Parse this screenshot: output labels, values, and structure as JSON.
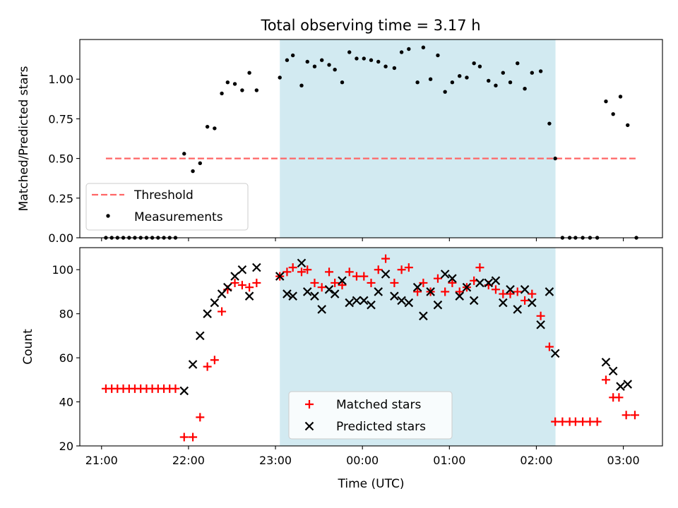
{
  "figure": {
    "title": "Total observing time = 3.17 h"
  },
  "colors": {
    "shade": "#add8e6",
    "threshold": "#ff6666",
    "measurement": "#000000",
    "matched": "#ff0000",
    "predicted": "#000000"
  },
  "chart_data": [
    {
      "type": "scatter",
      "title": "Total observing time = 3.17 h",
      "xlabel": "",
      "ylabel": "Matched/Predicted stars",
      "x_unit": "hours (Time UTC)",
      "xlim": [
        20.75,
        27.45
      ],
      "ylim": [
        0.0,
        1.25
      ],
      "yticks": [
        0.0,
        0.25,
        0.5,
        0.75,
        1.0
      ],
      "ytick_labels": [
        "0.00",
        "0.25",
        "0.50",
        "0.75",
        "1.00"
      ],
      "xticks": [
        21,
        22,
        23,
        24,
        25,
        26,
        27
      ],
      "xtick_labels": [
        "",
        "",
        "",
        "",
        "",
        "",
        ""
      ],
      "shaded_region": [
        23.05,
        26.22
      ],
      "threshold": {
        "name": "Threshold",
        "y": 0.5,
        "x": [
          21.05,
          27.15
        ],
        "style": "dashed"
      },
      "legend": {
        "position": "lower-left",
        "entries": [
          "Threshold",
          "Measurements"
        ]
      },
      "series": [
        {
          "name": "Measurements",
          "points": [
            [
              21.05,
              0
            ],
            [
              21.117,
              0
            ],
            [
              21.183,
              0
            ],
            [
              21.25,
              0
            ],
            [
              21.317,
              0
            ],
            [
              21.383,
              0
            ],
            [
              21.45,
              0
            ],
            [
              21.517,
              0
            ],
            [
              21.583,
              0
            ],
            [
              21.65,
              0
            ],
            [
              21.717,
              0
            ],
            [
              21.783,
              0
            ],
            [
              21.85,
              0
            ],
            [
              21.95,
              0.53
            ],
            [
              22.05,
              0.42
            ],
            [
              22.133,
              0.47
            ],
            [
              22.217,
              0.7
            ],
            [
              22.3,
              0.69
            ],
            [
              22.383,
              0.91
            ],
            [
              22.45,
              0.98
            ],
            [
              22.533,
              0.97
            ],
            [
              22.617,
              0.93
            ],
            [
              22.7,
              1.04
            ],
            [
              22.783,
              0.93
            ],
            [
              23.05,
              1.01
            ],
            [
              23.133,
              1.12
            ],
            [
              23.2,
              1.15
            ],
            [
              23.3,
              0.96
            ],
            [
              23.367,
              1.11
            ],
            [
              23.45,
              1.08
            ],
            [
              23.533,
              1.12
            ],
            [
              23.617,
              1.09
            ],
            [
              23.683,
              1.06
            ],
            [
              23.767,
              0.98
            ],
            [
              23.85,
              1.17
            ],
            [
              23.933,
              1.13
            ],
            [
              24.017,
              1.13
            ],
            [
              24.1,
              1.12
            ],
            [
              24.183,
              1.11
            ],
            [
              24.267,
              1.08
            ],
            [
              24.367,
              1.07
            ],
            [
              24.45,
              1.17
            ],
            [
              24.533,
              1.19
            ],
            [
              24.633,
              0.98
            ],
            [
              24.7,
              1.2
            ],
            [
              24.783,
              1.0
            ],
            [
              24.867,
              1.15
            ],
            [
              24.95,
              0.92
            ],
            [
              25.033,
              0.98
            ],
            [
              25.117,
              1.02
            ],
            [
              25.2,
              1.01
            ],
            [
              25.283,
              1.1
            ],
            [
              25.35,
              1.08
            ],
            [
              25.45,
              0.99
            ],
            [
              25.533,
              0.96
            ],
            [
              25.617,
              1.04
            ],
            [
              25.7,
              0.98
            ],
            [
              25.783,
              1.1
            ],
            [
              25.867,
              0.94
            ],
            [
              25.95,
              1.04
            ],
            [
              26.05,
              1.05
            ],
            [
              26.15,
              0.72
            ],
            [
              26.217,
              0.5
            ],
            [
              26.3,
              0
            ],
            [
              26.383,
              0
            ],
            [
              26.45,
              0
            ],
            [
              26.533,
              0
            ],
            [
              26.617,
              0
            ],
            [
              26.7,
              0
            ],
            [
              26.8,
              0.86
            ],
            [
              26.883,
              0.78
            ],
            [
              26.967,
              0.89
            ],
            [
              27.05,
              0.71
            ],
            [
              27.15,
              0
            ]
          ]
        }
      ]
    },
    {
      "type": "scatter",
      "xlabel": "Time (UTC)",
      "ylabel": "Count",
      "x_unit": "hours (Time UTC)",
      "xlim": [
        20.75,
        27.45
      ],
      "ylim": [
        20,
        110
      ],
      "yticks": [
        20,
        40,
        60,
        80,
        100
      ],
      "ytick_labels": [
        "20",
        "40",
        "60",
        "80",
        "100"
      ],
      "xticks": [
        21,
        22,
        23,
        24,
        25,
        26,
        27
      ],
      "xtick_labels": [
        "21:00",
        "22:00",
        "23:00",
        "00:00",
        "01:00",
        "02:00",
        "03:00"
      ],
      "shaded_region": [
        23.05,
        26.22
      ],
      "legend": {
        "position": "lower-center",
        "entries": [
          "Matched stars",
          "Predicted stars"
        ]
      },
      "series": [
        {
          "name": "Matched stars",
          "marker": "+",
          "points": [
            [
              21.05,
              46
            ],
            [
              21.117,
              46
            ],
            [
              21.183,
              46
            ],
            [
              21.25,
              46
            ],
            [
              21.317,
              46
            ],
            [
              21.383,
              46
            ],
            [
              21.45,
              46
            ],
            [
              21.517,
              46
            ],
            [
              21.583,
              46
            ],
            [
              21.65,
              46
            ],
            [
              21.717,
              46
            ],
            [
              21.783,
              46
            ],
            [
              21.85,
              46
            ],
            [
              21.95,
              24
            ],
            [
              22.05,
              24
            ],
            [
              22.133,
              33
            ],
            [
              22.217,
              56
            ],
            [
              22.3,
              59
            ],
            [
              22.383,
              81
            ],
            [
              22.45,
              91
            ],
            [
              22.533,
              94
            ],
            [
              22.617,
              93
            ],
            [
              22.7,
              92
            ],
            [
              22.783,
              94
            ],
            [
              23.05,
              97
            ],
            [
              23.133,
              99
            ],
            [
              23.2,
              101
            ],
            [
              23.3,
              99
            ],
            [
              23.367,
              100
            ],
            [
              23.45,
              94
            ],
            [
              23.533,
              92
            ],
            [
              23.617,
              99
            ],
            [
              23.683,
              94
            ],
            [
              23.767,
              93
            ],
            [
              23.85,
              99
            ],
            [
              23.933,
              97
            ],
            [
              24.017,
              97
            ],
            [
              24.1,
              94
            ],
            [
              24.183,
              100
            ],
            [
              24.267,
              105
            ],
            [
              24.367,
              94
            ],
            [
              24.45,
              100
            ],
            [
              24.533,
              101
            ],
            [
              24.633,
              90
            ],
            [
              24.7,
              94
            ],
            [
              24.783,
              90
            ],
            [
              24.867,
              96
            ],
            [
              24.95,
              90
            ],
            [
              25.033,
              94
            ],
            [
              25.117,
              90
            ],
            [
              25.2,
              92
            ],
            [
              25.283,
              95
            ],
            [
              25.35,
              101
            ],
            [
              25.45,
              93
            ],
            [
              25.533,
              91
            ],
            [
              25.617,
              89
            ],
            [
              25.7,
              89
            ],
            [
              25.783,
              90
            ],
            [
              25.867,
              86
            ],
            [
              25.95,
              89
            ],
            [
              26.05,
              79
            ],
            [
              26.15,
              65
            ],
            [
              26.217,
              31
            ],
            [
              26.3,
              31
            ],
            [
              26.383,
              31
            ],
            [
              26.45,
              31
            ],
            [
              26.533,
              31
            ],
            [
              26.617,
              31
            ],
            [
              26.7,
              31
            ],
            [
              26.8,
              50
            ],
            [
              26.883,
              42
            ],
            [
              26.95,
              42
            ],
            [
              27.033,
              34
            ],
            [
              27.133,
              34
            ]
          ]
        },
        {
          "name": "Predicted stars",
          "marker": "x",
          "points": [
            [
              21.95,
              45
            ],
            [
              22.05,
              57
            ],
            [
              22.133,
              70
            ],
            [
              22.217,
              80
            ],
            [
              22.3,
              85
            ],
            [
              22.383,
              89
            ],
            [
              22.45,
              92
            ],
            [
              22.533,
              97
            ],
            [
              22.617,
              100
            ],
            [
              22.7,
              88
            ],
            [
              22.783,
              101
            ],
            [
              23.05,
              97
            ],
            [
              23.133,
              89
            ],
            [
              23.2,
              88
            ],
            [
              23.3,
              103
            ],
            [
              23.367,
              90
            ],
            [
              23.45,
              88
            ],
            [
              23.533,
              82
            ],
            [
              23.617,
              91
            ],
            [
              23.683,
              89
            ],
            [
              23.767,
              95
            ],
            [
              23.85,
              85
            ],
            [
              23.933,
              86
            ],
            [
              24.017,
              86
            ],
            [
              24.1,
              84
            ],
            [
              24.183,
              90
            ],
            [
              24.267,
              98
            ],
            [
              24.367,
              88
            ],
            [
              24.45,
              86
            ],
            [
              24.533,
              85
            ],
            [
              24.633,
              92
            ],
            [
              24.7,
              79
            ],
            [
              24.783,
              90
            ],
            [
              24.867,
              84
            ],
            [
              24.95,
              98
            ],
            [
              25.033,
              96
            ],
            [
              25.117,
              88
            ],
            [
              25.2,
              92
            ],
            [
              25.283,
              86
            ],
            [
              25.35,
              94
            ],
            [
              25.45,
              94
            ],
            [
              25.533,
              95
            ],
            [
              25.617,
              85
            ],
            [
              25.7,
              91
            ],
            [
              25.783,
              82
            ],
            [
              25.867,
              91
            ],
            [
              25.95,
              85
            ],
            [
              26.05,
              75
            ],
            [
              26.15,
              90
            ],
            [
              26.217,
              62
            ],
            [
              26.8,
              58
            ],
            [
              26.883,
              54
            ],
            [
              26.967,
              47
            ],
            [
              27.05,
              48
            ]
          ]
        }
      ]
    }
  ]
}
